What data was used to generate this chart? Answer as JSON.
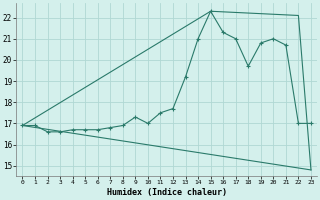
{
  "background_color": "#d4f0ec",
  "grid_color": "#b0d8d4",
  "line_color": "#2a7a6a",
  "xlabel": "Humidex (Indice chaleur)",
  "xlim": [
    -0.5,
    23.5
  ],
  "ylim": [
    14.5,
    22.7
  ],
  "xticks": [
    0,
    1,
    2,
    3,
    4,
    5,
    6,
    7,
    8,
    9,
    10,
    11,
    12,
    13,
    14,
    15,
    16,
    17,
    18,
    19,
    20,
    21,
    22,
    23
  ],
  "yticks": [
    15,
    16,
    17,
    18,
    19,
    20,
    21,
    22
  ],
  "line1_x": [
    0,
    1,
    2,
    3,
    4,
    5,
    6,
    7,
    8,
    9,
    10,
    11,
    12,
    13,
    14,
    15,
    16,
    17,
    18,
    19,
    20,
    21,
    22,
    23
  ],
  "line1_y": [
    16.9,
    16.9,
    16.6,
    16.6,
    16.7,
    16.7,
    16.7,
    16.8,
    16.9,
    17.3,
    17.0,
    17.5,
    17.7,
    19.2,
    21.0,
    22.3,
    21.3,
    21.0,
    19.7,
    20.8,
    21.0,
    20.7,
    17.0,
    17.0
  ],
  "line2_x": [
    0,
    15,
    22,
    23
  ],
  "line2_y": [
    16.9,
    22.3,
    22.1,
    14.8
  ],
  "line3_x": [
    0,
    23
  ],
  "line3_y": [
    16.9,
    14.8
  ]
}
